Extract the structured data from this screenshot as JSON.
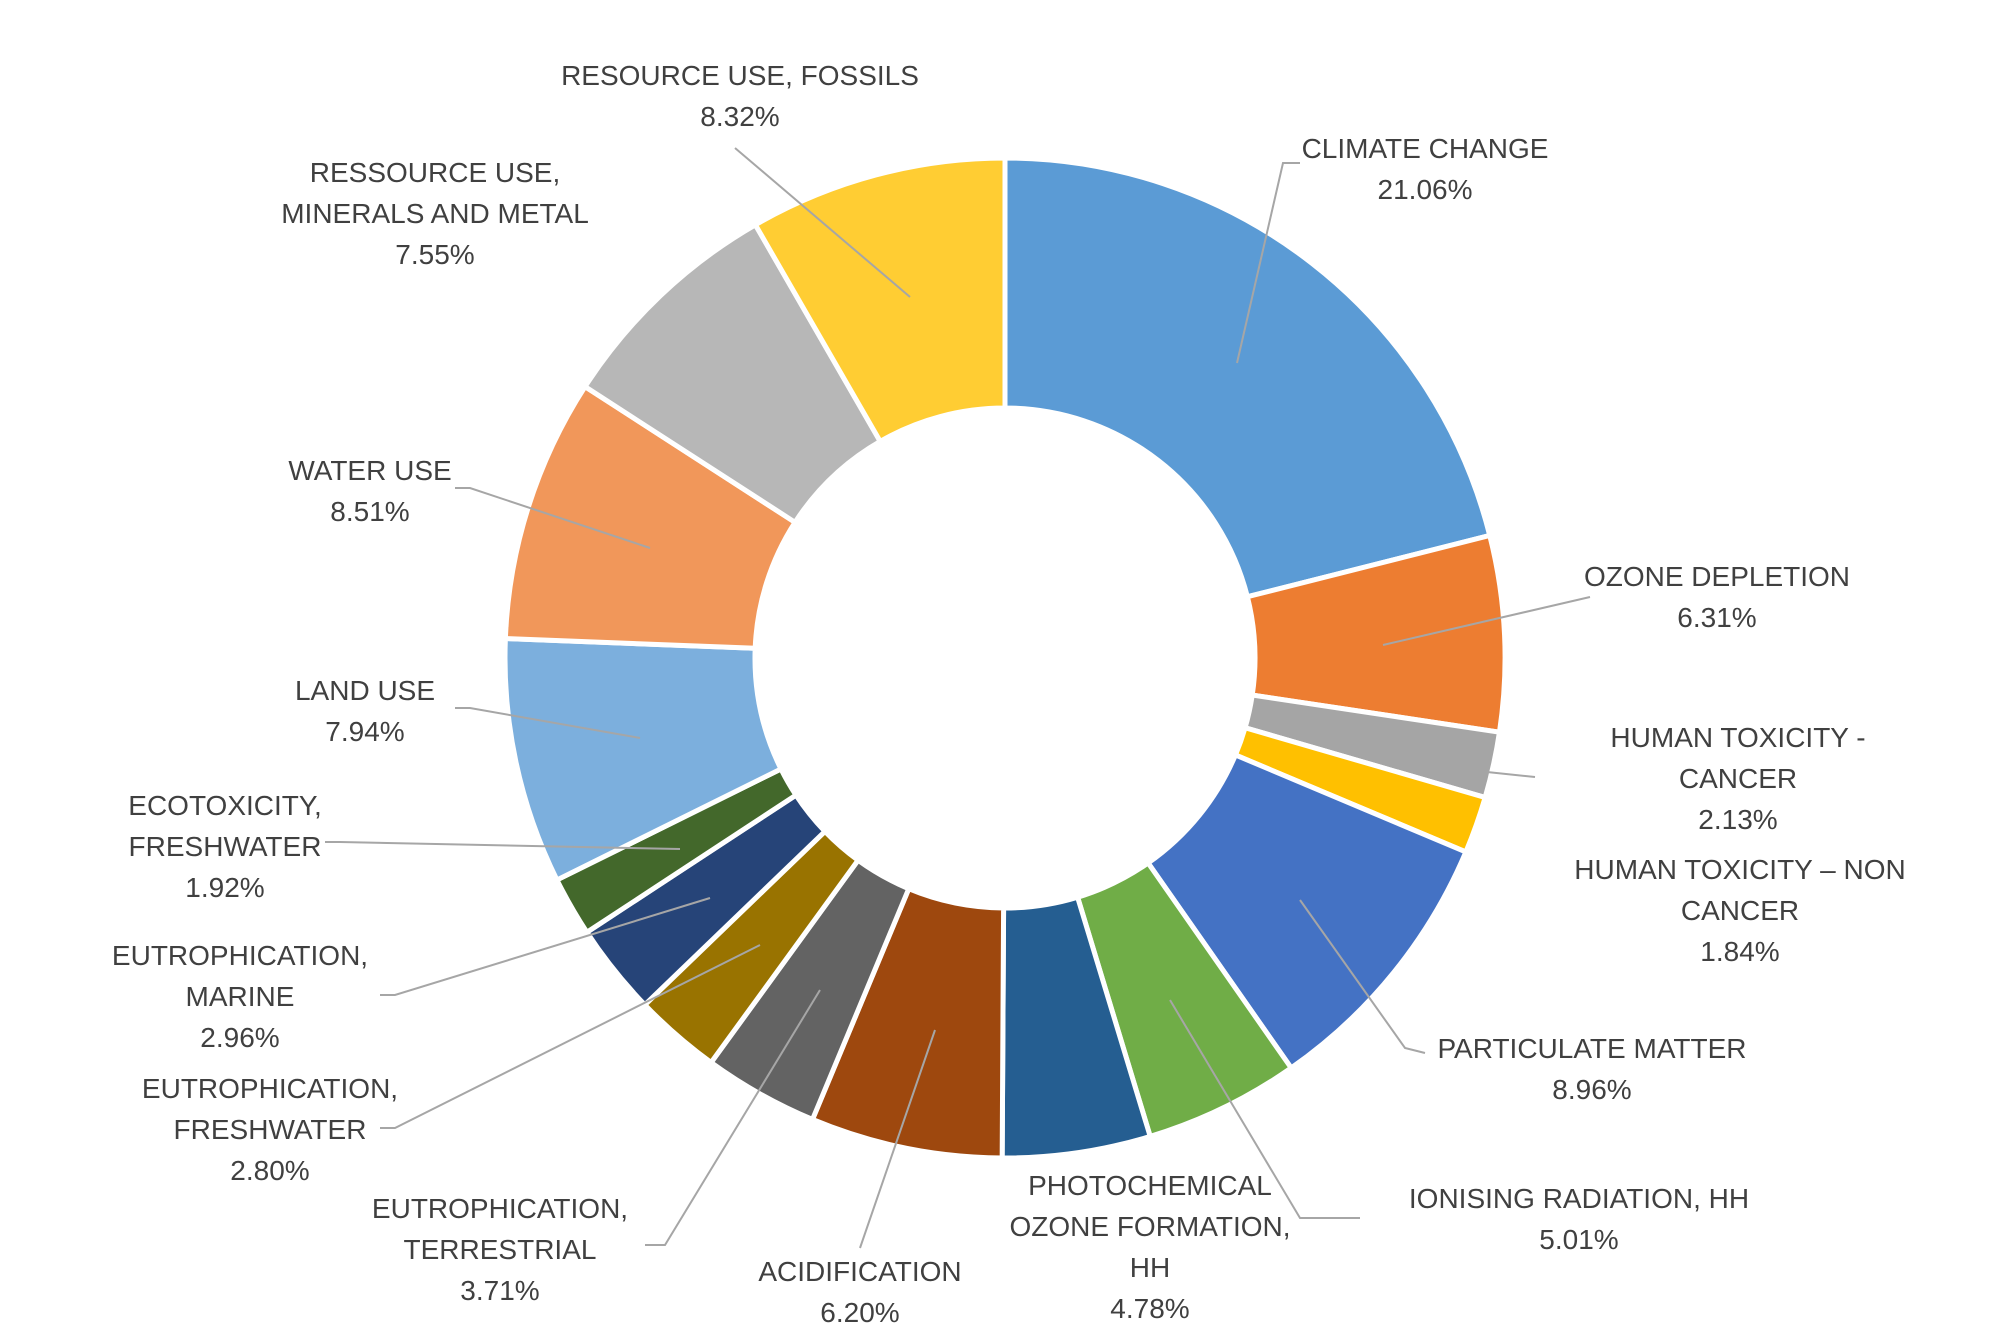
{
  "chart_data": {
    "type": "pie",
    "title": "",
    "series": [
      {
        "lines": [
          "CLIMATE CHANGE"
        ],
        "value": 21.06,
        "label": "21.06%",
        "color": "#5b9bd5"
      },
      {
        "lines": [
          "OZONE DEPLETION"
        ],
        "value": 6.31,
        "label": "6.31%",
        "color": "#ed7d31"
      },
      {
        "lines": [
          "HUMAN TOXICITY -",
          "CANCER"
        ],
        "value": 2.13,
        "label": "2.13%",
        "color": "#a5a5a5"
      },
      {
        "lines": [
          "HUMAN TOXICITY – NON",
          "CANCER"
        ],
        "value": 1.84,
        "label": "1.84%",
        "color": "#ffc000"
      },
      {
        "lines": [
          "PARTICULATE MATTER"
        ],
        "value": 8.96,
        "label": "8.96%",
        "color": "#4472c4"
      },
      {
        "lines": [
          "IONISING RADIATION, HH"
        ],
        "value": 5.01,
        "label": "5.01%",
        "color": "#70ad47"
      },
      {
        "lines": [
          "PHOTOCHEMICAL",
          "OZONE FORMATION,",
          "HH"
        ],
        "value": 4.78,
        "label": "4.78%",
        "color": "#255e91"
      },
      {
        "lines": [
          "ACIDIFICATION"
        ],
        "value": 6.2,
        "label": "6.20%",
        "color": "#9e480e"
      },
      {
        "lines": [
          "EUTROPHICATION,",
          "TERRESTRIAL"
        ],
        "value": 3.71,
        "label": "3.71%",
        "color": "#636363"
      },
      {
        "lines": [
          "EUTROPHICATION,",
          "FRESHWATER"
        ],
        "value": 2.8,
        "label": "2.80%",
        "color": "#997300"
      },
      {
        "lines": [
          "EUTROPHICATION,",
          "MARINE"
        ],
        "value": 2.96,
        "label": "2.96%",
        "color": "#264478"
      },
      {
        "lines": [
          "ECOTOXICITY,",
          "FRESHWATER"
        ],
        "value": 1.92,
        "label": "1.92%",
        "color": "#43682b"
      },
      {
        "lines": [
          "LAND USE"
        ],
        "value": 7.94,
        "label": "7.94%",
        "color": "#7cafdd"
      },
      {
        "lines": [
          "WATER USE"
        ],
        "value": 8.51,
        "label": "8.51%",
        "color": "#f1975a"
      },
      {
        "lines": [
          "RESSOURCE USE,",
          "MINERALS AND METAL"
        ],
        "value": 7.55,
        "label": "7.55%",
        "color": "#b7b7b7"
      },
      {
        "lines": [
          "RESOURCE USE, FOSSILS"
        ],
        "value": 8.32,
        "label": "8.32%",
        "color": "#ffcd33"
      }
    ]
  }
}
